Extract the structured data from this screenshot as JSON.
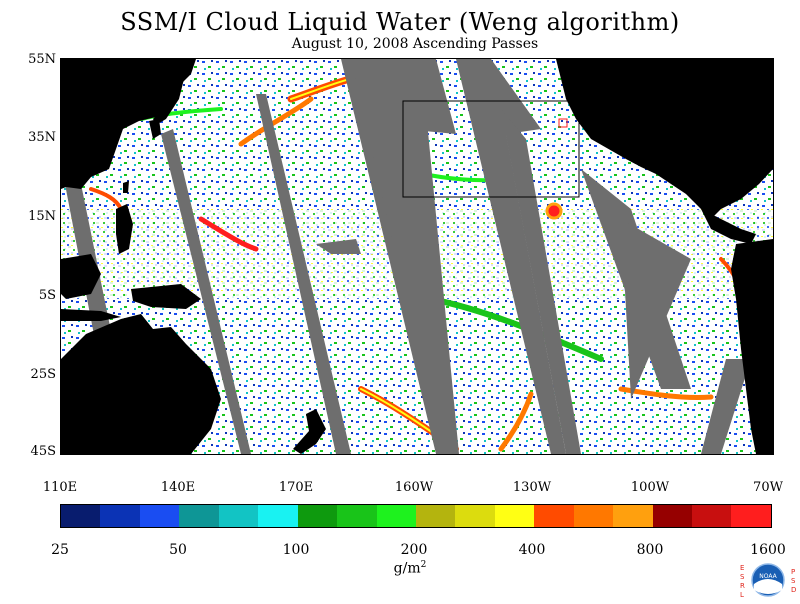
{
  "title": "SSM/I Cloud Liquid Water (Weng algorithm)",
  "subtitle": "August 10, 2008  Ascending Passes",
  "lat_labels": [
    "55N",
    "35N",
    "15N",
    "5S",
    "25S",
    "45S"
  ],
  "lon_labels": [
    "110E",
    "140E",
    "170E",
    "160W",
    "130W",
    "100W",
    "70W"
  ],
  "colorbar": {
    "colors": [
      "#081c6e",
      "#0b33b5",
      "#1a4df2",
      "#0e9696",
      "#12c4c4",
      "#19f2f2",
      "#0e9a0e",
      "#19c419",
      "#1ef21e",
      "#b4b40e",
      "#dcdc0e",
      "#ffff14",
      "#ff4b00",
      "#ff7800",
      "#ffa00e",
      "#960000",
      "#c80f0f",
      "#ff1e1e"
    ],
    "labels": [
      "25",
      "50",
      "100",
      "200",
      "400",
      "800",
      "1600"
    ]
  },
  "units": "g/m",
  "units_sup": "2",
  "logo": {
    "left_letters": "ESRL",
    "right_letters": "PSD",
    "center_text": "NOAA",
    "colors": {
      "red": "#e0241b",
      "blue": "#1a5fb4"
    }
  }
}
